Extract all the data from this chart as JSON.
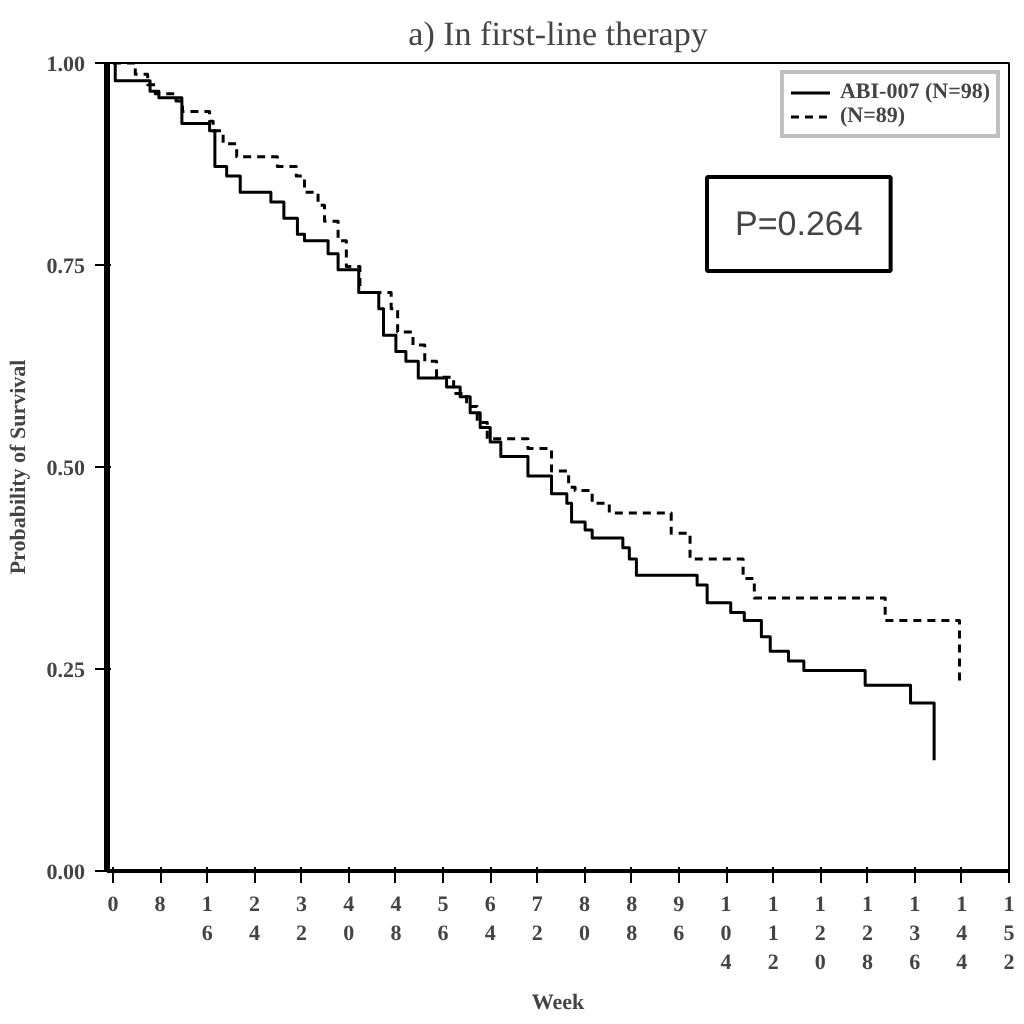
{
  "chart_data": {
    "type": "step",
    "title": "a) In first-line therapy",
    "xlabel": "Week",
    "ylabel": "Probability of Survival",
    "xlim": [
      -1,
      152
    ],
    "xticks": [
      0,
      8,
      16,
      24,
      32,
      40,
      48,
      56,
      64,
      72,
      80,
      88,
      96,
      104,
      112,
      120,
      128,
      136,
      144,
      152
    ],
    "ylim": [
      0,
      1
    ],
    "yticks": [
      {
        "value": 0,
        "label": "0.00"
      },
      {
        "value": 0.25,
        "label": "0.25"
      },
      {
        "value": 0.5,
        "label": "0.50"
      },
      {
        "value": 0.75,
        "label": "0.75"
      },
      {
        "value": 1,
        "label": "1.00"
      }
    ],
    "grid": false,
    "legend": "top right",
    "marker": "none",
    "annotations": [
      "P=0.264"
    ],
    "series": [
      {
        "name": "ABI-007 (N=98)",
        "color": "#000000",
        "line_style": "solid",
        "x": [
          0,
          0.4,
          6.3,
          7.8,
          11.7,
          16.4,
          17.3,
          19.3,
          21.6,
          26.8,
          29,
          31.3,
          32.5,
          36.5,
          38.2,
          41.7,
          45.1,
          45.9,
          48,
          49.7,
          51.8,
          56.6,
          58.9,
          60.6,
          62.3,
          64,
          65.8,
          70.4,
          74.4,
          77,
          77.8,
          80.1,
          81.3,
          86.5,
          87.6,
          88.8,
          99.1,
          100.8,
          104.8,
          107.1,
          110,
          111.5,
          114.6,
          117.2,
          127.6,
          135.3,
          139.3
        ],
        "values": [
          1,
          0.978,
          0.965,
          0.957,
          0.925,
          0.916,
          0.872,
          0.86,
          0.84,
          0.828,
          0.808,
          0.788,
          0.78,
          0.764,
          0.744,
          0.716,
          0.696,
          0.663,
          0.643,
          0.631,
          0.61,
          0.599,
          0.587,
          0.567,
          0.549,
          0.531,
          0.513,
          0.489,
          0.467,
          0.455,
          0.432,
          0.422,
          0.412,
          0.4,
          0.386,
          0.366,
          0.354,
          0.332,
          0.32,
          0.31,
          0.29,
          0.272,
          0.26,
          0.248,
          0.23,
          0.208,
          0.137
        ]
      },
      {
        "name": "(N=89)",
        "color": "#000000",
        "line_style": "dashed",
        "x": [
          0,
          3.8,
          5.9,
          7.2,
          10.7,
          11.8,
          16.4,
          17,
          18.7,
          21,
          27.9,
          31.1,
          32.5,
          34.8,
          35.9,
          38.2,
          39.6,
          41.9,
          47.2,
          48.3,
          50.9,
          52.9,
          54.9,
          57.8,
          60,
          61.8,
          63.5,
          70.4,
          74.4,
          77.3,
          78.4,
          81.3,
          84.2,
          94.7,
          97.9,
          106.9,
          108.8,
          131,
          143.6
        ],
        "values": [
          1,
          0.986,
          0.973,
          0.962,
          0.953,
          0.94,
          0.928,
          0.916,
          0.9,
          0.884,
          0.872,
          0.86,
          0.84,
          0.824,
          0.804,
          0.78,
          0.748,
          0.716,
          0.696,
          0.667,
          0.651,
          0.631,
          0.611,
          0.591,
          0.575,
          0.555,
          0.535,
          0.523,
          0.495,
          0.475,
          0.471,
          0.455,
          0.443,
          0.418,
          0.386,
          0.362,
          0.338,
          0.31,
          0.231
        ]
      }
    ]
  }
}
